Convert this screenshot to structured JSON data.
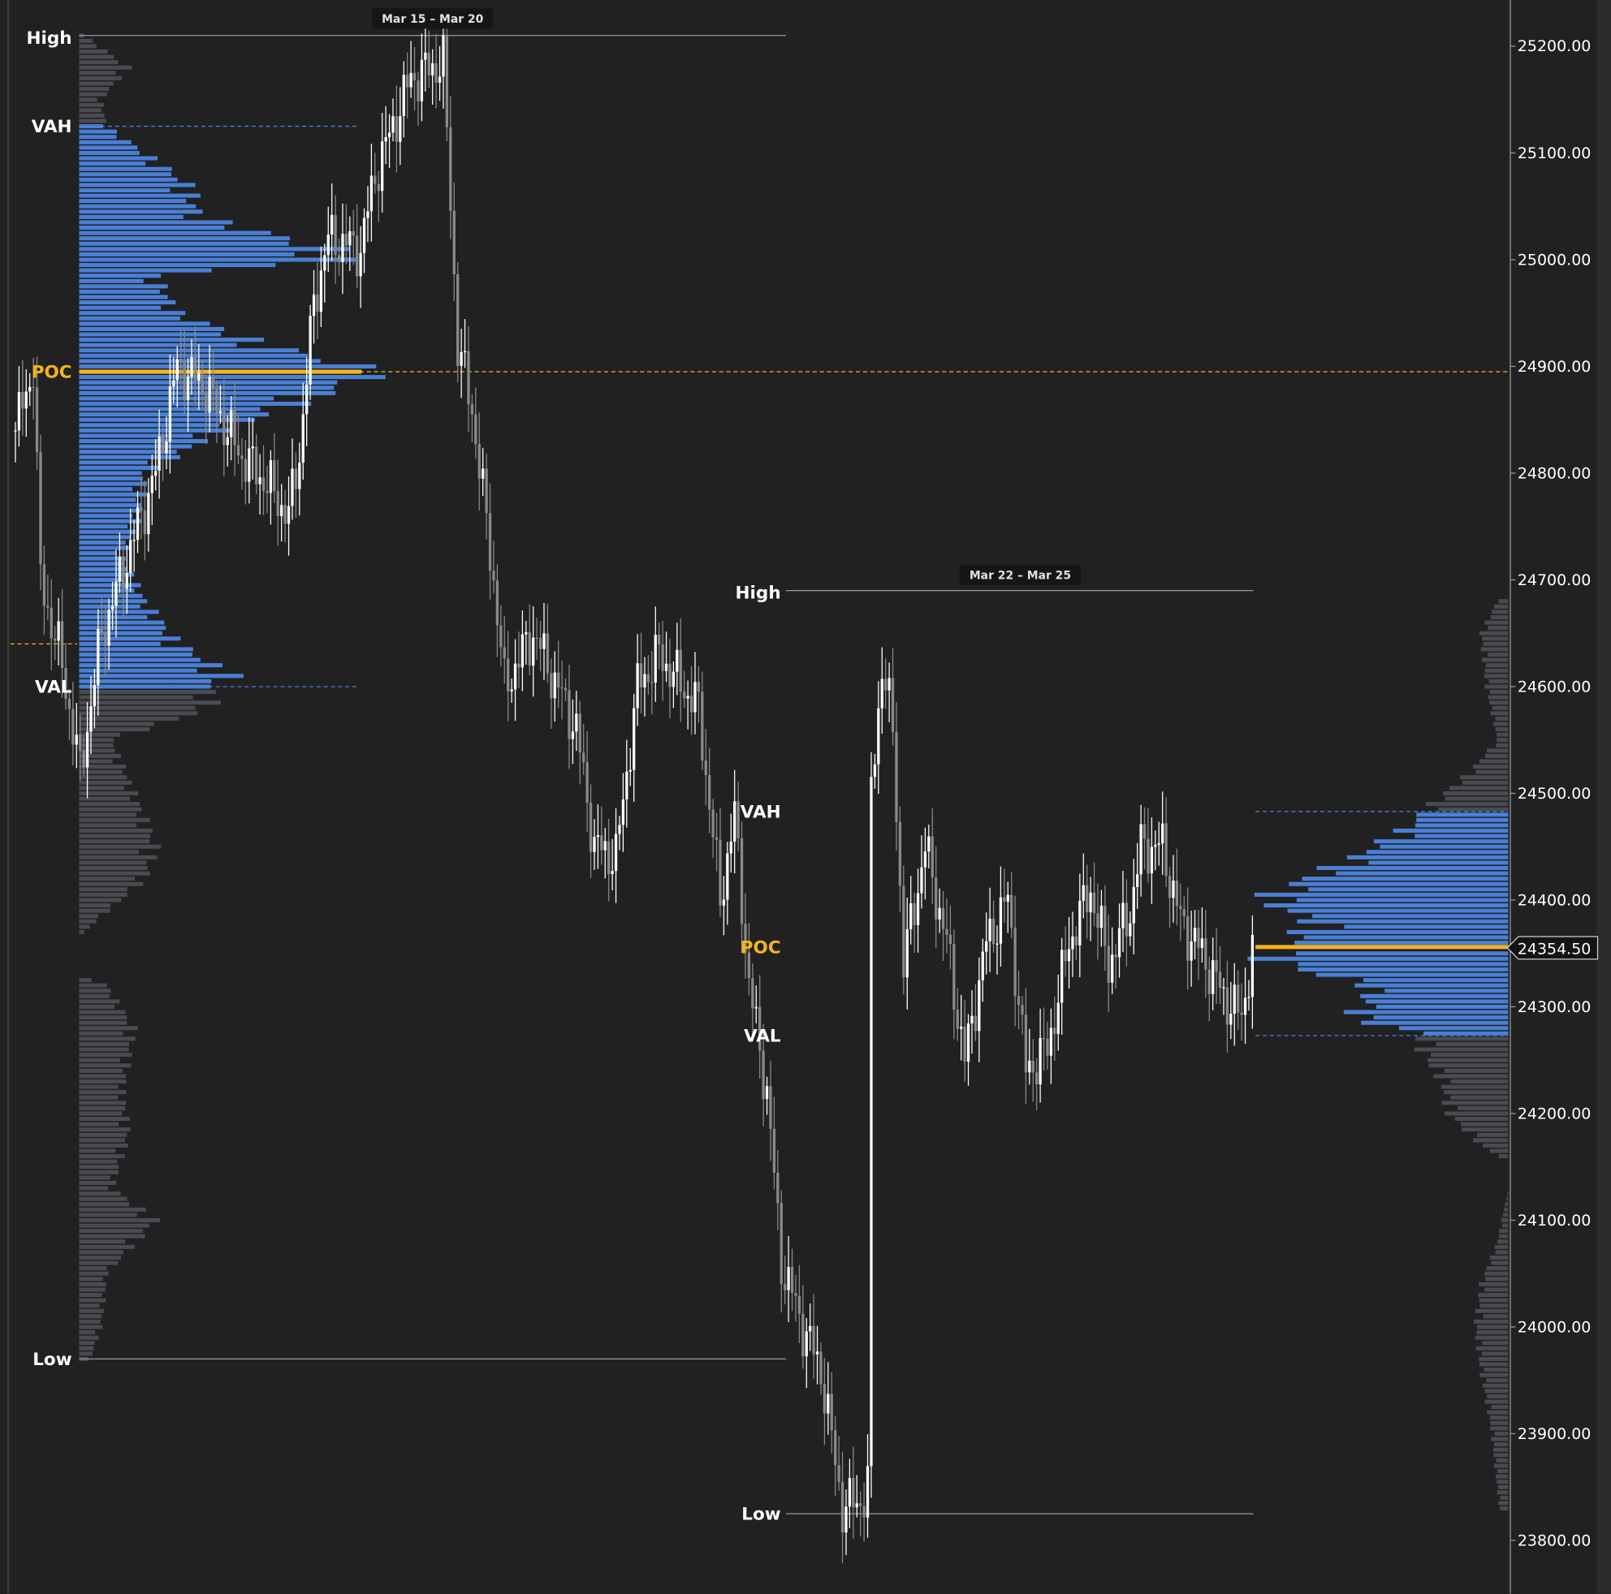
{
  "chart_data": {
    "type": "candlestick-volume-profile",
    "y_axis": {
      "min": 23800,
      "max": 25200,
      "step": 100,
      "decimals": 2,
      "position": "right"
    },
    "current_price": "24354.50",
    "colors": {
      "background": "#212121",
      "value_area": "#4a7fd4",
      "outside_value_area": "#4a4a52",
      "poc": "#f5b31f",
      "bull": "#ffffff",
      "bear": "#8a8a8a",
      "level_line": "#9a9a9a"
    },
    "price_path": [
      [
        0,
        24840
      ],
      [
        5,
        24900
      ],
      [
        7,
        24700
      ],
      [
        13,
        24620
      ],
      [
        18,
        24520
      ],
      [
        24,
        24650
      ],
      [
        39,
        24800
      ],
      [
        45,
        24900
      ],
      [
        53,
        24880
      ],
      [
        62,
        24820
      ],
      [
        70,
        24790
      ],
      [
        76,
        24760
      ],
      [
        79,
        24820
      ],
      [
        83,
        24960
      ],
      [
        87,
        25020
      ],
      [
        96,
        25010
      ],
      [
        100,
        25080
      ],
      [
        110,
        25170
      ],
      [
        119,
        25185
      ],
      [
        120,
        25120
      ],
      [
        123,
        24920
      ],
      [
        127,
        24860
      ],
      [
        133,
        24700
      ],
      [
        136,
        24600
      ],
      [
        144,
        24650
      ],
      [
        156,
        24560
      ],
      [
        161,
        24450
      ],
      [
        167,
        24440
      ],
      [
        173,
        24600
      ],
      [
        179,
        24630
      ],
      [
        190,
        24580
      ],
      [
        196,
        24400
      ],
      [
        200,
        24480
      ],
      [
        204,
        24320
      ],
      [
        209,
        24220
      ],
      [
        213,
        24060
      ],
      [
        219,
        24000
      ],
      [
        224,
        23960
      ],
      [
        230,
        23830
      ],
      [
        236,
        23840
      ],
      [
        237,
        23850
      ],
      [
        238,
        24500
      ],
      [
        241,
        24620
      ],
      [
        244,
        24560
      ],
      [
        247,
        24340
      ],
      [
        253,
        24450
      ],
      [
        259,
        24360
      ],
      [
        264,
        24250
      ],
      [
        270,
        24360
      ],
      [
        276,
        24400
      ],
      [
        281,
        24240
      ],
      [
        287,
        24260
      ],
      [
        293,
        24360
      ],
      [
        299,
        24410
      ],
      [
        304,
        24340
      ],
      [
        310,
        24390
      ],
      [
        313,
        24450
      ],
      [
        319,
        24450
      ],
      [
        324,
        24380
      ],
      [
        330,
        24350
      ],
      [
        336,
        24310
      ],
      [
        341,
        24290
      ],
      [
        344,
        24355
      ]
    ],
    "profiles": [
      {
        "label": "Mar 15 – Mar 20",
        "high": 25210,
        "low": 23970,
        "vah": 25125,
        "val": 24600,
        "poc": 24895,
        "level_labels": {
          "high": "High",
          "vah": "VAH",
          "poc": "POC",
          "val": "VAL",
          "low": "Low"
        },
        "volume_shape": [
          [
            25210,
            5
          ],
          [
            25180,
            45
          ],
          [
            25150,
            20
          ],
          [
            25125,
            25
          ],
          [
            25100,
            60
          ],
          [
            25070,
            100
          ],
          [
            25040,
            110
          ],
          [
            25010,
            230
          ],
          [
            25000,
            240
          ],
          [
            24985,
            70
          ],
          [
            24950,
            90
          ],
          [
            24920,
            170
          ],
          [
            24895,
            275
          ],
          [
            24870,
            210
          ],
          [
            24840,
            130
          ],
          [
            24800,
            60
          ],
          [
            24760,
            55
          ],
          [
            24720,
            40
          ],
          [
            24680,
            60
          ],
          [
            24640,
            90
          ],
          [
            24610,
            140
          ],
          [
            24600,
            120
          ],
          [
            24580,
            120
          ],
          [
            24550,
            30
          ],
          [
            24500,
            50
          ],
          [
            24450,
            70
          ],
          [
            24420,
            60
          ],
          [
            24380,
            15
          ],
          [
            24365,
            0
          ],
          [
            24330,
            0
          ],
          [
            24320,
            25
          ],
          [
            24280,
            50
          ],
          [
            24220,
            40
          ],
          [
            24180,
            45
          ],
          [
            24130,
            30
          ],
          [
            24100,
            70
          ],
          [
            24050,
            25
          ],
          [
            24000,
            20
          ],
          [
            23970,
            10
          ]
        ]
      },
      {
        "label": "Mar 22 – Mar 25",
        "high": 24690,
        "low": 23825,
        "vah": 24483,
        "val": 24273,
        "poc": 24356,
        "level_labels": {
          "high": "High",
          "vah": "VAH",
          "poc": "POC",
          "val": "VAL",
          "low": "Low"
        },
        "volume_shape": [
          [
            24680,
            10
          ],
          [
            24650,
            25
          ],
          [
            24600,
            20
          ],
          [
            24550,
            10
          ],
          [
            24520,
            35
          ],
          [
            24490,
            70
          ],
          [
            24470,
            90
          ],
          [
            24440,
            140
          ],
          [
            24420,
            185
          ],
          [
            24400,
            225
          ],
          [
            24380,
            180
          ],
          [
            24360,
            200
          ],
          [
            24356,
            246
          ],
          [
            24340,
            210
          ],
          [
            24320,
            130
          ],
          [
            24300,
            130
          ],
          [
            24290,
            150
          ],
          [
            24275,
            80
          ],
          [
            24260,
            80
          ],
          [
            24230,
            60
          ],
          [
            24200,
            55
          ],
          [
            24170,
            25
          ],
          [
            24155,
            0
          ],
          [
            24130,
            0
          ],
          [
            24080,
            10
          ],
          [
            24040,
            25
          ],
          [
            24000,
            30
          ],
          [
            23960,
            25
          ],
          [
            23900,
            15
          ],
          [
            23830,
            8
          ]
        ]
      }
    ]
  }
}
